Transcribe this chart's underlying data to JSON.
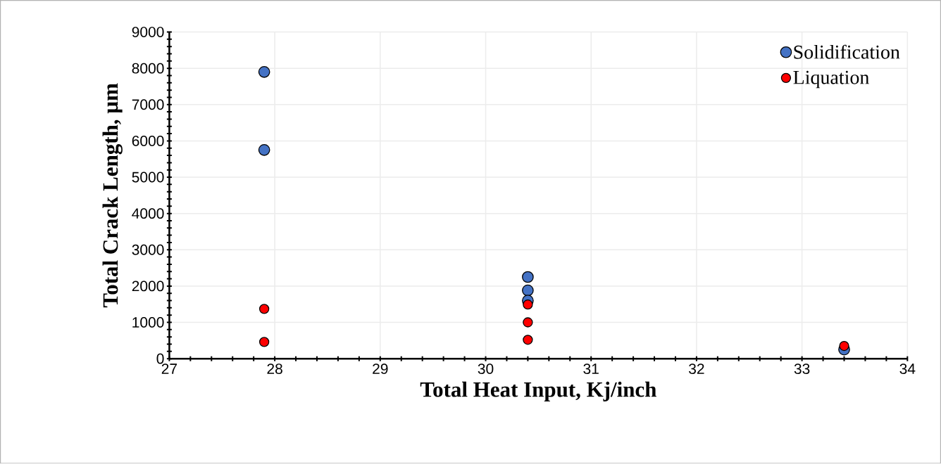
{
  "chart_data": {
    "type": "scatter",
    "xlabel": "Total Heat Input, Kj/inch",
    "ylabel": "Total Crack Length, µm",
    "series": [
      {
        "name": "Solidification",
        "color": "#4472c4",
        "x": [
          27.9,
          27.9,
          30.4,
          30.4,
          30.4,
          33.4
        ],
        "values": [
          7900,
          5750,
          2250,
          1880,
          1600,
          250
        ]
      },
      {
        "name": "Liquation",
        "color": "#ff0000",
        "x": [
          27.9,
          27.9,
          30.4,
          30.4,
          30.4,
          33.4
        ],
        "values": [
          1370,
          460,
          1490,
          1000,
          520,
          350
        ]
      }
    ],
    "xlim": [
      27,
      34
    ],
    "xticks": [
      27,
      28,
      29,
      30,
      31,
      32,
      33,
      34
    ],
    "ylim": [
      0,
      9000
    ],
    "yticks": [
      0,
      1000,
      2000,
      3000,
      4000,
      5000,
      6000,
      7000,
      8000,
      9000
    ],
    "grid": true,
    "legend": "top right",
    "marker": "circle"
  }
}
